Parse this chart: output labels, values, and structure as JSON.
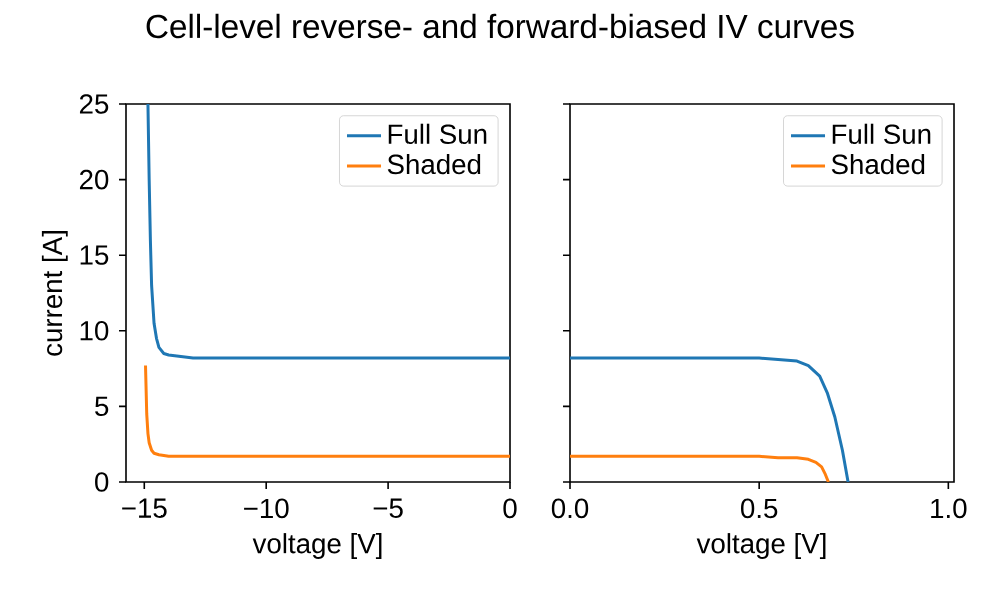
{
  "chart_data": [
    {
      "type": "line",
      "title": "Cell-level reverse- and forward-biased IV curves",
      "xlabel": "voltage [V]",
      "ylabel": "current [A]",
      "xlim": [
        -15.75,
        0
      ],
      "ylim": [
        0,
        25
      ],
      "xticks": [
        {
          "value": -15,
          "label": "−15"
        },
        {
          "value": -10,
          "label": "−10"
        },
        {
          "value": -5,
          "label": "−5"
        },
        0
      ],
      "yticks": [
        0,
        5,
        10,
        15,
        20,
        25
      ],
      "legend": "top right",
      "series": [
        {
          "name": "Full Sun",
          "color": "#1f77b4",
          "x": [
            -14.85,
            -14.8,
            -14.75,
            -14.7,
            -14.6,
            -14.5,
            -14.4,
            -14.2,
            -14.0,
            -13.5,
            -13,
            -10,
            -5,
            0
          ],
          "values": [
            25,
            20,
            16,
            13,
            10.5,
            9.5,
            8.9,
            8.5,
            8.4,
            8.3,
            8.2,
            8.2,
            8.2,
            8.2
          ]
        },
        {
          "name": "Shaded",
          "color": "#ff7f0e",
          "x": [
            -14.95,
            -14.9,
            -14.85,
            -14.8,
            -14.7,
            -14.6,
            -14.4,
            -14.0,
            -13,
            -10,
            -5,
            0
          ],
          "values": [
            7.7,
            4.5,
            3.2,
            2.6,
            2.1,
            1.9,
            1.8,
            1.7,
            1.7,
            1.7,
            1.7,
            1.7
          ]
        }
      ]
    },
    {
      "type": "line",
      "xlabel": "voltage [V]",
      "xlim": [
        0,
        1.015
      ],
      "ylim": [
        0,
        25
      ],
      "xticks": [
        {
          "value": 0,
          "label": "0.0"
        },
        0.5,
        {
          "value": 1,
          "label": "1.0"
        }
      ],
      "yticks": [
        0,
        5,
        10,
        15,
        20,
        25
      ],
      "legend": "top right",
      "tick_labels": "x",
      "series": [
        {
          "name": "Full Sun",
          "color": "#1f77b4",
          "x": [
            0,
            0.3,
            0.5,
            0.55,
            0.6,
            0.63,
            0.66,
            0.68,
            0.7,
            0.72,
            0.735
          ],
          "values": [
            8.2,
            8.2,
            8.2,
            8.1,
            8.0,
            7.7,
            7.0,
            5.9,
            4.3,
            2.1,
            0
          ]
        },
        {
          "name": "Shaded",
          "color": "#ff7f0e",
          "x": [
            0,
            0.3,
            0.5,
            0.55,
            0.6,
            0.63,
            0.65,
            0.665,
            0.675,
            0.683
          ],
          "values": [
            1.7,
            1.7,
            1.7,
            1.6,
            1.6,
            1.5,
            1.3,
            1.0,
            0.5,
            0
          ]
        }
      ]
    }
  ]
}
